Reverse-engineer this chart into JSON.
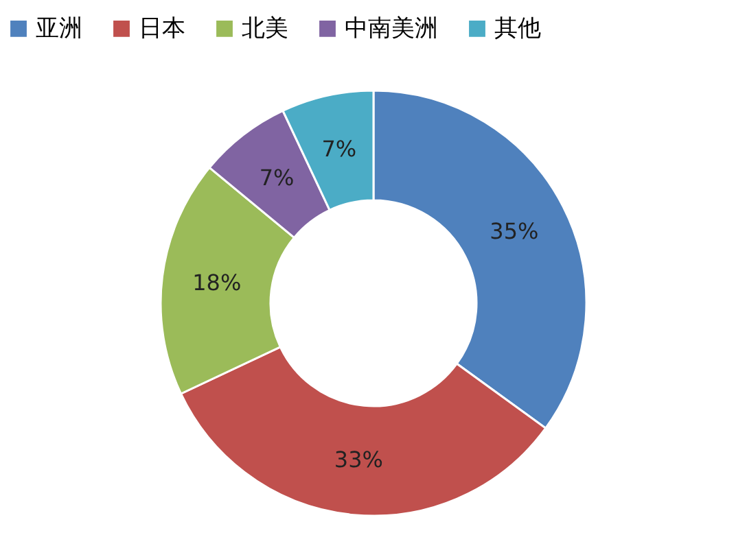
{
  "chart_data": {
    "type": "donut",
    "categories": [
      "亚洲",
      "日本",
      "北美",
      "中南美洲",
      "其他"
    ],
    "values": [
      35,
      33,
      18,
      7,
      7
    ],
    "colors": [
      "#4f81bd",
      "#c0504d",
      "#9bbb59",
      "#8064a2",
      "#4bacc6"
    ],
    "value_labels": [
      "35%",
      "33%",
      "18%",
      "7%",
      "7%"
    ],
    "legend": "top"
  }
}
